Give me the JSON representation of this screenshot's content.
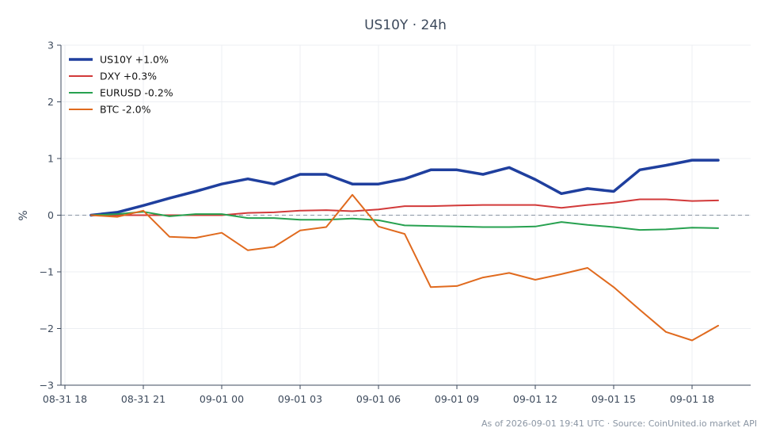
{
  "chart_data": {
    "type": "line",
    "title": "US10Y · 24h",
    "xlabel": "",
    "ylabel": "%",
    "ylim": [
      -3,
      3
    ],
    "yticks": [
      -3,
      -2,
      -1,
      0,
      1,
      2,
      3
    ],
    "ytick_labels": [
      "−3",
      "−2",
      "−1",
      "0",
      "1",
      "2",
      "3"
    ],
    "x": [
      "08-31 19:00",
      "08-31 20:00",
      "08-31 21:00",
      "08-31 22:00",
      "08-31 23:00",
      "09-01 00:00",
      "09-01 01:00",
      "09-01 02:00",
      "09-01 03:00",
      "09-01 04:00",
      "09-01 05:00",
      "09-01 06:00",
      "09-01 07:00",
      "09-01 08:00",
      "09-01 09:00",
      "09-01 10:00",
      "09-01 11:00",
      "09-01 12:00",
      "09-01 13:00",
      "09-01 14:00",
      "09-01 15:00",
      "09-01 16:00",
      "09-01 17:00",
      "09-01 18:00",
      "09-01 19:00"
    ],
    "xticks": [
      "08-31 18",
      "08-31 21",
      "09-01 00",
      "09-01 03",
      "09-01 06",
      "09-01 09",
      "09-01 12",
      "09-01 15",
      "09-01 18"
    ],
    "grid": true,
    "zero_line": true,
    "legend_position": "top-left",
    "series": [
      {
        "name": "US10Y +1.0%",
        "color": "#1f3f9e",
        "values": [
          0.0,
          0.05,
          0.17,
          0.3,
          0.42,
          0.55,
          0.64,
          0.55,
          0.72,
          0.72,
          0.55,
          0.55,
          0.64,
          0.8,
          0.8,
          0.72,
          0.84,
          0.63,
          0.38,
          0.47,
          0.42,
          0.8,
          0.88,
          0.97,
          0.97
        ]
      },
      {
        "name": "DXY +0.3%",
        "color": "#d23a3a",
        "values": [
          0.0,
          0.0,
          0.0,
          0.0,
          0.0,
          0.0,
          0.04,
          0.05,
          0.08,
          0.09,
          0.07,
          0.1,
          0.16,
          0.16,
          0.17,
          0.18,
          0.18,
          0.18,
          0.13,
          0.18,
          0.22,
          0.28,
          0.28,
          0.25,
          0.26
        ]
      },
      {
        "name": "EURUSD -0.2%",
        "color": "#27a150",
        "values": [
          0.0,
          0.02,
          0.06,
          -0.02,
          0.02,
          0.02,
          -0.05,
          -0.05,
          -0.08,
          -0.08,
          -0.06,
          -0.09,
          -0.18,
          -0.19,
          -0.2,
          -0.21,
          -0.21,
          -0.2,
          -0.12,
          -0.17,
          -0.21,
          -0.26,
          -0.25,
          -0.22,
          -0.23
        ]
      },
      {
        "name": "BTC -2.0%",
        "color": "#e06a1e",
        "values": [
          0.0,
          -0.03,
          0.08,
          -0.38,
          -0.4,
          -0.31,
          -0.62,
          -0.56,
          -0.27,
          -0.21,
          0.36,
          -0.2,
          -0.33,
          -1.27,
          -1.25,
          -1.1,
          -1.02,
          -1.14,
          -1.04,
          -0.93,
          -1.27,
          -1.67,
          -2.06,
          -2.21,
          -1.95
        ]
      }
    ]
  },
  "footer": "As of 2026-09-01 19:41 UTC · Source: CoinUnited.io market API"
}
